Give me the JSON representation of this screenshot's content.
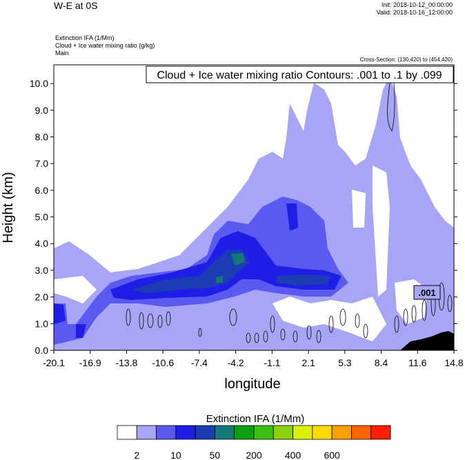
{
  "header": {
    "title": "W-E at 0S",
    "init": "Init: 2018-10-12_00:00:00",
    "valid": "Valid: 2018-10-16_12:00:00",
    "var1": "Extinction IFA   (1/Mm)",
    "var2": "Cloud + Ice water mixing ratio   (g/kg)",
    "var3": "Main",
    "cross_section": "Cross-Section: (130,420) to (454,420)"
  },
  "chart_data": {
    "type": "contour",
    "contour_title": "Cloud + Ice water mixing ratio Contours: .001 to .1 by .099",
    "contour_label": ".001",
    "xlabel": "longitude",
    "ylabel": "Height (km)",
    "xticks": [
      "-20.1",
      "-16.9",
      "-13.8",
      "-10.6",
      "-7.4",
      "-4.2",
      "-1.1",
      "2.1",
      "5.3",
      "8.4",
      "11.6",
      "14.8"
    ],
    "xlim": [
      -20.1,
      14.8
    ],
    "yticks": [
      "0.0",
      "1.0",
      "2.0",
      "3.0",
      "4.0",
      "5.0",
      "6.0",
      "7.0",
      "8.0",
      "9.0",
      "10.0"
    ],
    "ylim": [
      0,
      10.7
    ],
    "colorbar": {
      "title": "Extinction IFA  (1/Mm)",
      "labels": [
        "2",
        "10",
        "50",
        "200",
        "400",
        "600"
      ],
      "colors": [
        "#ffffff",
        "#a6a6f5",
        "#5a5af0",
        "#1e1ee6",
        "#1c3cb4",
        "#14787a",
        "#0aa014",
        "#3cbe14",
        "#8cd20a",
        "#dcf000",
        "#ffdc00",
        "#ffa000",
        "#ff6400",
        "#ff1e00"
      ]
    }
  }
}
